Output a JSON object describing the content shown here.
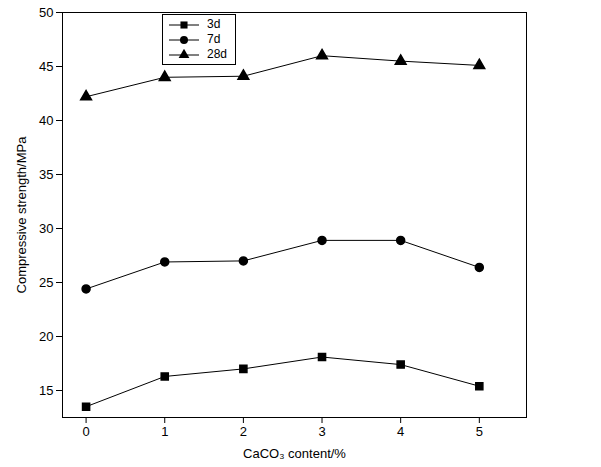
{
  "chart_data": {
    "type": "line",
    "x_label": "CaCO₃ content/%",
    "y_label": "Compressive strength/MPa",
    "x": [
      0,
      1,
      2,
      3,
      4,
      5
    ],
    "series": [
      {
        "name": "3d",
        "color": "#000000",
        "marker": "square",
        "values": [
          13.5,
          16.3,
          17.0,
          18.1,
          17.4,
          15.4
        ]
      },
      {
        "name": "7d",
        "color": "#000000",
        "marker": "circle",
        "values": [
          24.4,
          26.9,
          27.0,
          28.9,
          28.9,
          26.4
        ]
      },
      {
        "name": "28d",
        "color": "#000000",
        "marker": "triangle",
        "values": [
          42.2,
          44.0,
          44.1,
          46.0,
          45.5,
          45.1
        ]
      }
    ],
    "xlim": [
      -0.3,
      5.6
    ],
    "xticks": [
      0,
      1,
      2,
      3,
      4,
      5
    ],
    "ylim": [
      12.5,
      50
    ],
    "yticks": [
      15,
      20,
      25,
      30,
      35,
      40,
      45,
      50
    ],
    "legend": "upper left",
    "grid": false
  }
}
